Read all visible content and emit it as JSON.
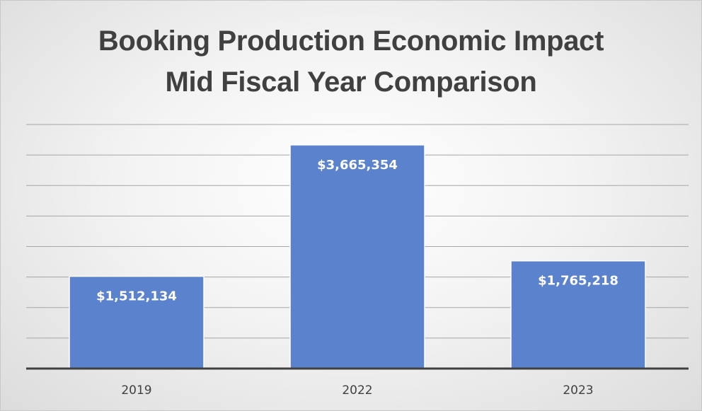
{
  "chart_data": {
    "type": "bar",
    "title": "Booking Production Economic Impact",
    "subtitle": "Mid Fiscal Year Comparison",
    "categories": [
      "2019",
      "2022",
      "2023"
    ],
    "values": [
      1512134,
      3665354,
      1765218
    ],
    "data_labels": [
      "$1,512,134",
      "$3,665,354",
      "$1,765,218"
    ],
    "xlabel": "",
    "ylabel": "",
    "ylim": [
      0,
      4000000
    ],
    "grid": true,
    "legend": "none",
    "colors": {
      "bar": "#5b82cc",
      "bar_border": "#ffffff",
      "grid": "#a6a6a6",
      "axis": "#404040",
      "title": "#404040"
    }
  }
}
